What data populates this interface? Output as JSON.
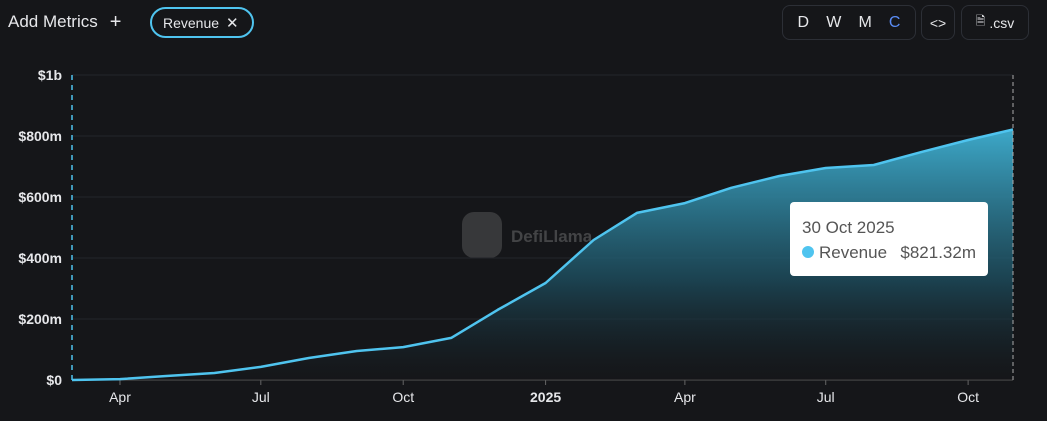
{
  "ui": {
    "add_metrics": "Add Metrics",
    "chip": "Revenue",
    "periods": [
      "D",
      "W",
      "M",
      "C"
    ],
    "embed": "<>",
    "csv": ".csv",
    "watermark": "DefiLlama"
  },
  "chart_data": {
    "type": "area",
    "x": [
      "2024-03",
      "2024-04",
      "2024-05",
      "2024-06",
      "2024-07",
      "2024-08",
      "2024-09",
      "2024-10",
      "2024-11",
      "2024-12",
      "2025-01",
      "2025-02",
      "2025-03",
      "2025-04",
      "2025-05",
      "2025-06",
      "2025-07",
      "2025-08",
      "2025-09",
      "2025-10",
      "2025-10-30"
    ],
    "series": [
      {
        "name": "Revenue",
        "color": "#4fc4ef",
        "values": [
          0,
          3,
          13,
          23,
          43,
          72,
          95,
          108,
          138,
          230,
          318,
          459,
          548,
          580,
          630,
          669,
          695,
          705,
          748,
          787,
          821.32
        ]
      }
    ],
    "xlim": [
      "2024-03",
      "2025-10-30"
    ],
    "xticks": [
      {
        "value": "2024-04",
        "label": "Apr"
      },
      {
        "value": "2024-07",
        "label": "Jul"
      },
      {
        "value": "2024-10",
        "label": "Oct"
      },
      {
        "value": "2025-01",
        "label": "2025"
      },
      {
        "value": "2025-04",
        "label": "Apr"
      },
      {
        "value": "2025-07",
        "label": "Jul"
      },
      {
        "value": "2025-10",
        "label": "Oct"
      }
    ],
    "ylim": [
      0,
      1000
    ],
    "yticks": [
      {
        "value": 0,
        "label": "$0"
      },
      {
        "value": 200,
        "label": "$200m"
      },
      {
        "value": 400,
        "label": "$400m"
      },
      {
        "value": 600,
        "label": "$600m"
      },
      {
        "value": 800,
        "label": "$800m"
      },
      {
        "value": 1000,
        "label": "$1b"
      }
    ],
    "grid": true,
    "tooltip": {
      "date": "30 Oct 2025",
      "value_label": "$821.32m"
    }
  }
}
